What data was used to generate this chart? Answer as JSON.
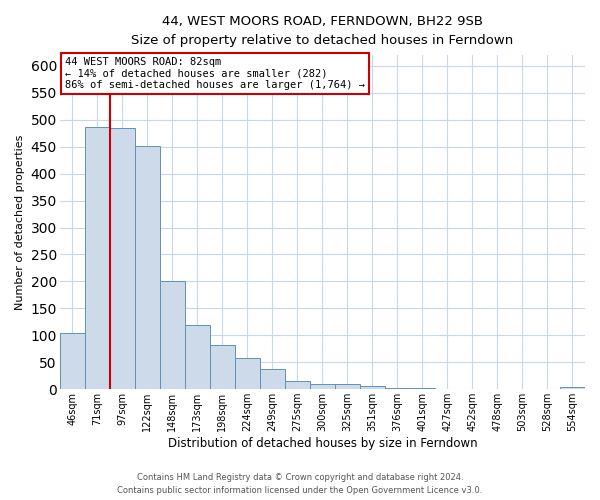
{
  "title": "44, WEST MOORS ROAD, FERNDOWN, BH22 9SB",
  "subtitle": "Size of property relative to detached houses in Ferndown",
  "xlabel": "Distribution of detached houses by size in Ferndown",
  "ylabel": "Number of detached properties",
  "bar_labels": [
    "46sqm",
    "71sqm",
    "97sqm",
    "122sqm",
    "148sqm",
    "173sqm",
    "198sqm",
    "224sqm",
    "249sqm",
    "275sqm",
    "300sqm",
    "325sqm",
    "351sqm",
    "376sqm",
    "401sqm",
    "427sqm",
    "452sqm",
    "478sqm",
    "503sqm",
    "528sqm",
    "554sqm"
  ],
  "bar_heights": [
    105,
    487,
    485,
    452,
    200,
    120,
    82,
    57,
    37,
    15,
    10,
    10,
    5,
    3,
    2,
    1,
    1,
    0,
    0,
    0,
    4
  ],
  "bar_color": "#ccdaea",
  "bar_edge_color": "#6090b8",
  "ylim": [
    0,
    620
  ],
  "yticks": [
    0,
    50,
    100,
    150,
    200,
    250,
    300,
    350,
    400,
    450,
    500,
    550,
    600
  ],
  "vline_x_idx": 1,
  "vline_color": "#cc0000",
  "annotation_title": "44 WEST MOORS ROAD: 82sqm",
  "annotation_line1": "← 14% of detached houses are smaller (282)",
  "annotation_line2": "86% of semi-detached houses are larger (1,764) →",
  "annotation_box_color": "#cc0000",
  "footer_line1": "Contains HM Land Registry data © Crown copyright and database right 2024.",
  "footer_line2": "Contains public sector information licensed under the Open Government Licence v3.0.",
  "background_color": "#ffffff",
  "grid_color": "#c8d8e8"
}
